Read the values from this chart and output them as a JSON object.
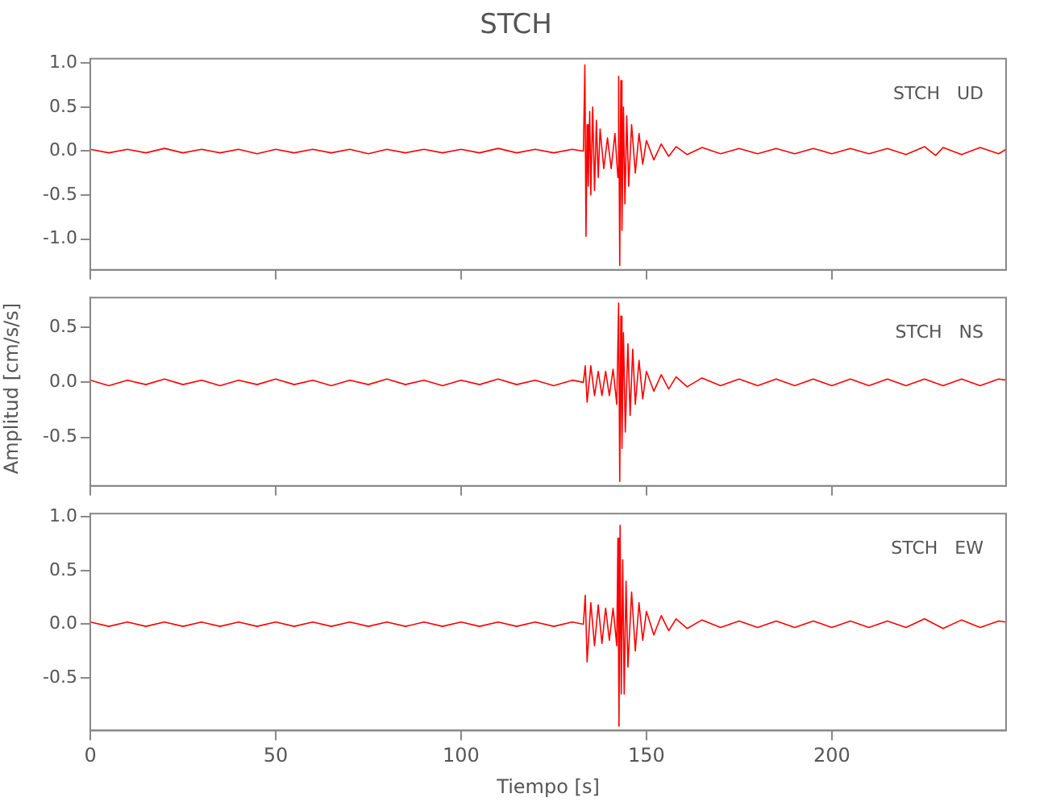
{
  "chart_data": [
    {
      "type": "line",
      "title": "STCH",
      "annotations": [
        "STCH   UD"
      ],
      "tick_labels": "y",
      "grid": false,
      "legend": false,
      "marker": "none",
      "xlim": [
        0,
        247
      ],
      "xticks": [
        0,
        50,
        100,
        150,
        200
      ],
      "ylim": [
        -1.35,
        1.05
      ],
      "yticks": [
        {
          "value": -1,
          "label": "-1.0"
        },
        {
          "value": -0.5,
          "label": "-0.5"
        },
        {
          "value": 0,
          "label": "0.0"
        },
        {
          "value": 0.5,
          "label": "0.5"
        },
        {
          "value": 1,
          "label": "1.0"
        }
      ],
      "series": [
        {
          "color": "#ff0000",
          "x": [
            0,
            5,
            10,
            15,
            20,
            25,
            30,
            35,
            40,
            45,
            50,
            55,
            60,
            65,
            70,
            75,
            80,
            85,
            90,
            95,
            100,
            105,
            110,
            115,
            120,
            125,
            130,
            133,
            133.4,
            133.7,
            134,
            134.3,
            134.7,
            135,
            135.5,
            136,
            136.5,
            137,
            137.5,
            138.5,
            139.5,
            140.5,
            141.5,
            142.3,
            142.5,
            142.8,
            143.1,
            143.4,
            143.8,
            144.2,
            144.7,
            145.2,
            146,
            147,
            148,
            149,
            150,
            152,
            154,
            156,
            158,
            161,
            165,
            170,
            175,
            180,
            185,
            190,
            195,
            200,
            205,
            210,
            215,
            220,
            225,
            228,
            230,
            235,
            240,
            245,
            247
          ],
          "values": [
            0.02,
            -0.02,
            0.02,
            -0.02,
            0.03,
            -0.02,
            0.02,
            -0.02,
            0.02,
            -0.03,
            0.02,
            -0.02,
            0.02,
            -0.02,
            0.02,
            -0.03,
            0.02,
            -0.02,
            0.02,
            -0.02,
            0.02,
            -0.02,
            0.03,
            -0.02,
            0.02,
            -0.02,
            0.02,
            0.0,
            0.98,
            -0.97,
            0.3,
            -0.4,
            0.45,
            -0.5,
            0.5,
            -0.45,
            0.35,
            -0.3,
            0.25,
            -0.2,
            0.15,
            -0.2,
            0.2,
            -0.3,
            0.85,
            -1.3,
            0.8,
            -0.9,
            0.5,
            -0.6,
            0.4,
            -0.4,
            0.3,
            -0.25,
            0.2,
            -0.15,
            0.12,
            -0.1,
            0.08,
            -0.06,
            0.05,
            -0.04,
            0.04,
            -0.03,
            0.03,
            -0.03,
            0.03,
            -0.03,
            0.03,
            -0.03,
            0.03,
            -0.03,
            0.03,
            -0.04,
            0.05,
            -0.05,
            0.04,
            -0.04,
            0.04,
            -0.03,
            0.02
          ]
        }
      ]
    },
    {
      "type": "line",
      "ylabel": "Amplitud [cm/s/s]",
      "annotations": [
        "STCH   NS"
      ],
      "tick_labels": "y",
      "grid": false,
      "legend": false,
      "marker": "none",
      "xlim": [
        0,
        247
      ],
      "xticks": [
        0,
        50,
        100,
        150,
        200
      ],
      "ylim": [
        -0.94,
        0.77
      ],
      "yticks": [
        {
          "value": -0.5,
          "label": "-0.5"
        },
        {
          "value": 0,
          "label": "0.0"
        },
        {
          "value": 0.5,
          "label": "0.5"
        }
      ],
      "series": [
        {
          "color": "#ff0000",
          "x": [
            0,
            5,
            10,
            15,
            20,
            25,
            30,
            35,
            40,
            45,
            50,
            55,
            60,
            65,
            70,
            75,
            80,
            85,
            90,
            95,
            100,
            105,
            110,
            115,
            120,
            125,
            130,
            133,
            133.5,
            134,
            135,
            136,
            137,
            138,
            139,
            140,
            141,
            142,
            142.5,
            142.8,
            143.1,
            143.4,
            143.8,
            144.3,
            145,
            145.6,
            146.3,
            147,
            148,
            149,
            150,
            152,
            154,
            156,
            158,
            161,
            165,
            170,
            175,
            180,
            185,
            190,
            195,
            200,
            205,
            210,
            215,
            220,
            225,
            230,
            235,
            240,
            245,
            247
          ],
          "values": [
            0.02,
            -0.03,
            0.02,
            -0.02,
            0.03,
            -0.02,
            0.02,
            -0.03,
            0.02,
            -0.02,
            0.03,
            -0.02,
            0.02,
            -0.03,
            0.02,
            -0.02,
            0.03,
            -0.02,
            0.02,
            -0.03,
            0.02,
            -0.02,
            0.03,
            -0.02,
            0.02,
            -0.03,
            0.02,
            0.0,
            0.15,
            -0.18,
            0.15,
            -0.12,
            0.1,
            -0.12,
            0.1,
            -0.12,
            0.12,
            -0.2,
            0.72,
            -0.9,
            0.6,
            -0.6,
            0.45,
            -0.45,
            0.35,
            -0.3,
            0.3,
            -0.2,
            0.2,
            -0.15,
            0.1,
            -0.08,
            0.07,
            -0.06,
            0.05,
            -0.04,
            0.04,
            -0.03,
            0.03,
            -0.03,
            0.03,
            -0.03,
            0.03,
            -0.03,
            0.03,
            -0.03,
            0.03,
            -0.03,
            0.03,
            -0.03,
            0.03,
            -0.03,
            0.03,
            0.02
          ]
        }
      ]
    },
    {
      "type": "line",
      "xlabel": "Tiempo [s]",
      "annotations": [
        "STCH   EW"
      ],
      "grid": false,
      "legend": false,
      "marker": "none",
      "xlim": [
        0,
        247
      ],
      "xticks": [
        0,
        50,
        100,
        150,
        200
      ],
      "ylim": [
        -0.99,
        1.03
      ],
      "yticks": [
        {
          "value": -0.5,
          "label": "-0.5"
        },
        {
          "value": 0,
          "label": "0.0"
        },
        {
          "value": 0.5,
          "label": "0.5"
        },
        {
          "value": 1,
          "label": "1.0"
        }
      ],
      "series": [
        {
          "color": "#ff0000",
          "x": [
            0,
            5,
            10,
            15,
            20,
            25,
            30,
            35,
            40,
            45,
            50,
            55,
            60,
            65,
            70,
            75,
            80,
            85,
            90,
            95,
            100,
            105,
            110,
            115,
            120,
            125,
            130,
            133,
            133.5,
            134,
            135,
            136,
            137,
            138,
            139,
            140,
            141,
            142,
            142.3,
            142.6,
            142.9,
            143.2,
            143.6,
            144,
            144.5,
            145,
            146,
            147,
            148,
            149,
            150,
            152,
            154,
            156,
            158,
            161,
            165,
            170,
            175,
            180,
            185,
            190,
            195,
            200,
            205,
            210,
            215,
            220,
            225,
            230,
            235,
            240,
            245,
            247
          ],
          "values": [
            0.02,
            -0.02,
            0.02,
            -0.02,
            0.02,
            -0.02,
            0.02,
            -0.02,
            0.02,
            -0.02,
            0.02,
            -0.02,
            0.02,
            -0.02,
            0.02,
            -0.02,
            0.02,
            -0.02,
            0.02,
            -0.02,
            0.02,
            -0.02,
            0.02,
            -0.02,
            0.02,
            -0.02,
            0.02,
            0.0,
            0.27,
            -0.35,
            0.2,
            -0.2,
            0.18,
            -0.18,
            0.15,
            -0.15,
            0.15,
            -0.2,
            0.8,
            -0.95,
            0.92,
            -0.65,
            0.6,
            -0.65,
            0.4,
            -0.4,
            0.3,
            -0.25,
            0.2,
            -0.15,
            0.12,
            -0.1,
            0.08,
            -0.06,
            0.05,
            -0.04,
            0.04,
            -0.03,
            0.03,
            -0.03,
            0.03,
            -0.03,
            0.03,
            -0.03,
            0.03,
            -0.03,
            0.03,
            -0.03,
            0.05,
            -0.04,
            0.04,
            -0.03,
            0.03,
            0.02
          ]
        }
      ]
    }
  ]
}
